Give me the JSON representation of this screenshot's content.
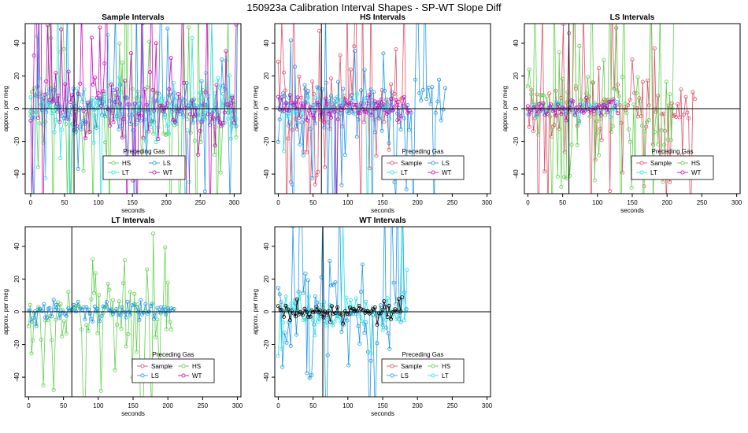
{
  "page_title": "150923a   Calibration Interval Shapes - SP-WT Slope Diff",
  "colors": {
    "Sample": "#df536b",
    "HS": "#61d04f",
    "LS": "#2297e6",
    "LT": "#28e2e5",
    "WT": "#cd0bbc",
    "SP": "#000000",
    "axis": "#000000",
    "background": "#ffffff"
  },
  "chart_data": [
    {
      "id": "sample",
      "type": "line",
      "title": "Sample Intervals",
      "xlabel": "seconds",
      "ylabel": "approx. per meg",
      "xlim": [
        -8,
        310
      ],
      "ylim": [
        -52,
        52
      ],
      "xticks": [
        0,
        50,
        100,
        150,
        200,
        250,
        300
      ],
      "yticks": [
        -40,
        -20,
        0,
        20,
        40
      ],
      "vline_x": 64,
      "hline_y": 0,
      "legend": {
        "title": "Preceding Gas",
        "position": "bottom-center",
        "entries": [
          "HS",
          "LS",
          "LT",
          "WT"
        ]
      },
      "series": [
        {
          "name": "HS",
          "xmax": 305,
          "amp": 9,
          "spike": 0.22
        },
        {
          "name": "LS",
          "xmax": 305,
          "amp": 6,
          "spike": 0.12
        },
        {
          "name": "LT",
          "xmax": 305,
          "amp": 8,
          "spike": 0.15
        },
        {
          "name": "WT",
          "xmax": 305,
          "amp": 10,
          "spike": 0.2
        }
      ]
    },
    {
      "id": "hs",
      "type": "line",
      "title": "HS Intervals",
      "xlabel": "seconds",
      "ylabel": "approx. per meg",
      "xlim": [
        -5,
        305
      ],
      "ylim": [
        -52,
        52
      ],
      "xticks": [
        0,
        50,
        100,
        150,
        200,
        250,
        300
      ],
      "yticks": [
        -40,
        -20,
        0,
        20,
        40
      ],
      "vline_x": 62,
      "hline_y": 0,
      "legend": {
        "title": "Preceding Gas",
        "position": "bottom-right",
        "entries": [
          "Sample",
          "LS",
          "LT",
          "WT"
        ]
      },
      "series": [
        {
          "name": "Sample",
          "xmax": 185,
          "amp": 11,
          "spike": 0.22
        },
        {
          "name": "LS",
          "xmax": 240,
          "amp": 10,
          "spike": 0.18
        },
        {
          "name": "LT",
          "xmax": 160,
          "amp": 4,
          "spike": 0.02
        },
        {
          "name": "WT",
          "xmax": 190,
          "amp": 4,
          "spike": 0.02
        }
      ]
    },
    {
      "id": "ls",
      "type": "line",
      "title": "LS Intervals",
      "xlabel": "seconds",
      "ylabel": "approx. per meg",
      "xlim": [
        -5,
        305
      ],
      "ylim": [
        -52,
        52
      ],
      "xticks": [
        0,
        50,
        100,
        150,
        200,
        250,
        300
      ],
      "yticks": [
        -40,
        -20,
        0,
        20,
        40
      ],
      "vline_x": 59,
      "hline_y": 0,
      "legend": {
        "title": "Preceding Gas",
        "position": "bottom-right",
        "entries": [
          "Sample",
          "HS",
          "LT",
          "WT"
        ]
      },
      "series": [
        {
          "name": "Sample",
          "xmax": 240,
          "amp": 10,
          "spike": 0.18
        },
        {
          "name": "HS",
          "xmax": 210,
          "amp": 13,
          "spike": 0.3
        },
        {
          "name": "LT",
          "xmax": 130,
          "amp": 3,
          "spike": 0.0
        },
        {
          "name": "WT",
          "xmax": 130,
          "amp": 3,
          "spike": 0.0
        }
      ]
    },
    {
      "id": "lt",
      "type": "line",
      "title": "LT Intervals",
      "xlabel": "seconds",
      "ylabel": "approx. per meg",
      "xlim": [
        -5,
        305
      ],
      "ylim": [
        -52,
        52
      ],
      "xticks": [
        0,
        50,
        100,
        150,
        200,
        250,
        300
      ],
      "yticks": [
        -40,
        -20,
        0,
        20,
        40
      ],
      "vline_x": 62,
      "hline_y": 0,
      "legend": {
        "title": "Preceding Gas",
        "position": "bottom-right",
        "entries": [
          "Sample",
          "HS",
          "LS",
          "WT"
        ]
      },
      "series": [
        {
          "name": "HS",
          "xmax": 205,
          "amp": 14,
          "spike": 0.12
        },
        {
          "name": "LS",
          "xmax": 210,
          "amp": 3,
          "spike": 0.02
        }
      ]
    },
    {
      "id": "wt",
      "type": "line",
      "title": "WT Intervals",
      "xlabel": "seconds",
      "ylabel": "approx. per meg",
      "xlim": [
        -5,
        305
      ],
      "ylim": [
        -52,
        52
      ],
      "xticks": [
        0,
        50,
        100,
        150,
        200,
        250,
        300
      ],
      "yticks": [
        -40,
        -20,
        0,
        20,
        40
      ],
      "vline_x": 64,
      "hline_y": 0,
      "legend": {
        "title": "Preceding Gas",
        "position": "bottom-right",
        "entries": [
          "Sample",
          "HS",
          "LS",
          "LT"
        ]
      },
      "series": [
        {
          "name": "LS",
          "xmax": 185,
          "amp": 14,
          "spike": 0.2
        },
        {
          "name": "LT",
          "xmax": 185,
          "amp": 6,
          "spike": 0.04
        },
        {
          "name": "SP",
          "xmax": 180,
          "amp": 3,
          "spike": 0.0
        }
      ]
    }
  ]
}
